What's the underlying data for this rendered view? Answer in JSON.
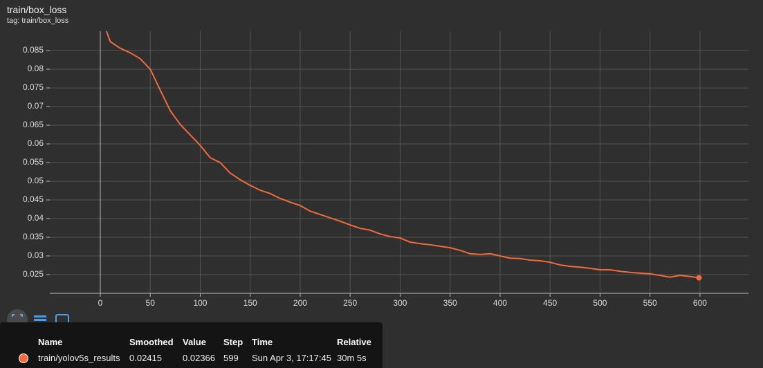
{
  "header": {
    "title": "train/box_loss",
    "tag": "tag: train/box_loss"
  },
  "chart_data": {
    "type": "line",
    "x": [
      5,
      10,
      20,
      30,
      40,
      50,
      60,
      70,
      80,
      90,
      100,
      110,
      120,
      130,
      140,
      150,
      160,
      170,
      180,
      190,
      200,
      210,
      220,
      230,
      240,
      250,
      260,
      270,
      280,
      290,
      300,
      310,
      320,
      330,
      340,
      350,
      360,
      370,
      380,
      390,
      400,
      410,
      420,
      430,
      440,
      450,
      460,
      470,
      480,
      490,
      500,
      510,
      520,
      530,
      540,
      550,
      560,
      570,
      580,
      590,
      599
    ],
    "series": [
      {
        "name": "train/yolov5s_results",
        "color": "#f26b3a",
        "values": [
          0.091,
          0.0874,
          0.0856,
          0.0844,
          0.0828,
          0.08,
          0.0744,
          0.0689,
          0.0652,
          0.0624,
          0.0596,
          0.0563,
          0.055,
          0.0522,
          0.0504,
          0.0489,
          0.0476,
          0.0467,
          0.0454,
          0.0444,
          0.0435,
          0.042,
          0.0411,
          0.0402,
          0.0393,
          0.0383,
          0.0374,
          0.0369,
          0.0359,
          0.0352,
          0.0348,
          0.0337,
          0.0333,
          0.033,
          0.0326,
          0.0322,
          0.0315,
          0.0306,
          0.0304,
          0.0306,
          0.03,
          0.0294,
          0.0293,
          0.0289,
          0.0287,
          0.0283,
          0.0276,
          0.0272,
          0.027,
          0.0267,
          0.0263,
          0.0263,
          0.0259,
          0.0256,
          0.0254,
          0.0252,
          0.0248,
          0.0243,
          0.0248,
          0.0245,
          0.02415
        ]
      }
    ],
    "xlim": [
      -50.5,
      648.5
    ],
    "ylim": [
      0.02,
      0.0902
    ],
    "xticks": [
      0,
      50,
      100,
      150,
      200,
      250,
      300,
      350,
      400,
      450,
      500,
      550,
      600
    ],
    "yticks": [
      0.025,
      0.03,
      0.035,
      0.04,
      0.045,
      0.05,
      0.055,
      0.06,
      0.065,
      0.07,
      0.075,
      0.08,
      0.085
    ],
    "grid": true
  },
  "tooltip": {
    "columns": [
      "Name",
      "Smoothed",
      "Value",
      "Step",
      "Time",
      "Relative"
    ],
    "value": 0.02366,
    "step": 599,
    "time": "Sun Apr 3, 17:17:45",
    "relative": "30m 5s"
  }
}
